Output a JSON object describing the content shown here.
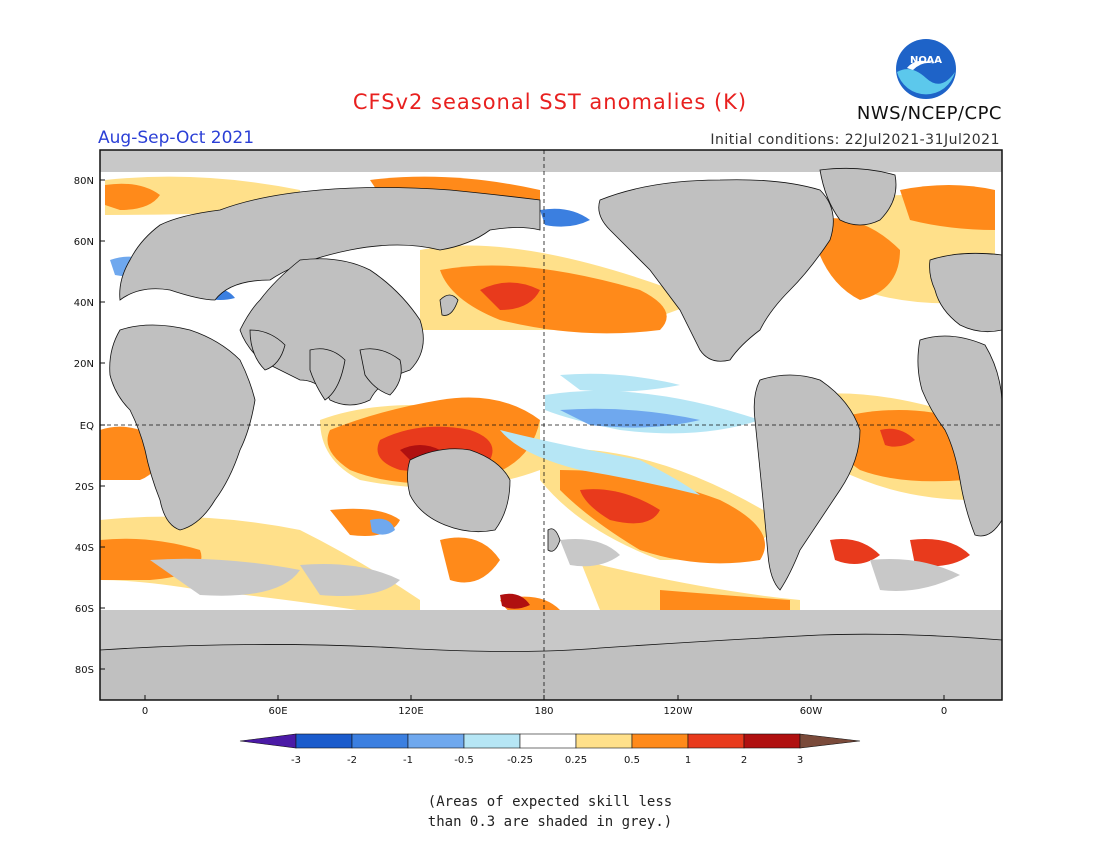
{
  "header": {
    "title": "CFSv2 seasonal SST anomalies (K)",
    "agency": "NWS/NCEP/CPC",
    "season": "Aug-Sep-Oct 2021",
    "initial_conditions": "Initial conditions: 22Jul2021-31Jul2021",
    "logo_text": "NOAA"
  },
  "map": {
    "lat_labels": [
      "80N",
      "60N",
      "40N",
      "20N",
      "EQ",
      "20S",
      "40S",
      "60S",
      "80S"
    ],
    "lon_labels": [
      "0",
      "60E",
      "120E",
      "180",
      "120W",
      "60W",
      "0"
    ],
    "colors": {
      "land": "#c0c0c0",
      "skill_mask": "#c8c8c8",
      "ocean_neutral": "#ffffff"
    }
  },
  "colorbar": {
    "tick_labels": [
      "-3",
      "-2",
      "-1",
      "-0.5",
      "-0.25",
      "0.25",
      "0.5",
      "1",
      "2",
      "3"
    ],
    "bins": [
      {
        "range": "< -3",
        "color": "#4b1aa6"
      },
      {
        "range": "-3 to -2",
        "color": "#1a5bcc"
      },
      {
        "range": "-2 to -1",
        "color": "#3b7fe0"
      },
      {
        "range": "-1 to -0.5",
        "color": "#6fa8ee"
      },
      {
        "range": "-0.5 to -0.25",
        "color": "#b6e6f5"
      },
      {
        "range": "-0.25 to 0.25",
        "color": "#ffffff"
      },
      {
        "range": "0.25 to 0.5",
        "color": "#ffe08a"
      },
      {
        "range": "0.5 to 1",
        "color": "#ff8a1a"
      },
      {
        "range": "1 to 2",
        "color": "#e83a1c"
      },
      {
        "range": "2 to 3",
        "color": "#b01010"
      },
      {
        "range": "> 3",
        "color": "#7a4a3a"
      }
    ]
  },
  "footnote": {
    "line1": "(Areas of expected skill less",
    "line2": "than 0.3 are shaded in grey.)"
  }
}
